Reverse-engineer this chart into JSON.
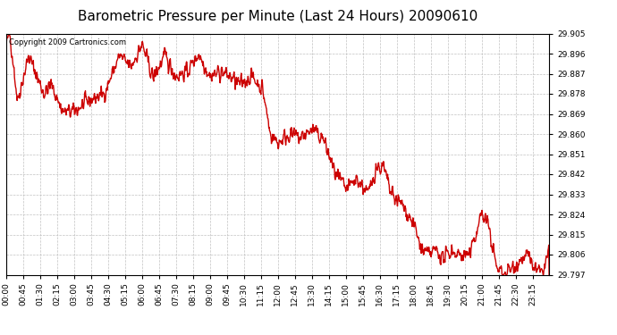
{
  "title": "Barometric Pressure per Minute (Last 24 Hours) 20090610",
  "copyright_text": "Copyright 2009 Cartronics.com",
  "line_color": "#cc0000",
  "background_color": "#ffffff",
  "grid_color": "#bbbbbb",
  "ylim": [
    29.797,
    29.905
  ],
  "yticks": [
    29.797,
    29.806,
    29.815,
    29.824,
    29.833,
    29.842,
    29.851,
    29.86,
    29.869,
    29.878,
    29.887,
    29.896,
    29.905
  ],
  "xtick_labels": [
    "00:00",
    "00:45",
    "01:30",
    "02:15",
    "03:00",
    "03:45",
    "04:30",
    "05:15",
    "06:00",
    "06:45",
    "07:30",
    "08:15",
    "09:00",
    "09:45",
    "10:30",
    "11:15",
    "12:00",
    "12:45",
    "13:30",
    "14:15",
    "15:00",
    "15:45",
    "16:30",
    "17:15",
    "18:00",
    "18:45",
    "19:30",
    "20:15",
    "21:00",
    "21:45",
    "22:30",
    "23:15"
  ],
  "title_fontsize": 11,
  "tick_fontsize": 6.5,
  "copyright_fontsize": 6,
  "line_width": 1.0
}
